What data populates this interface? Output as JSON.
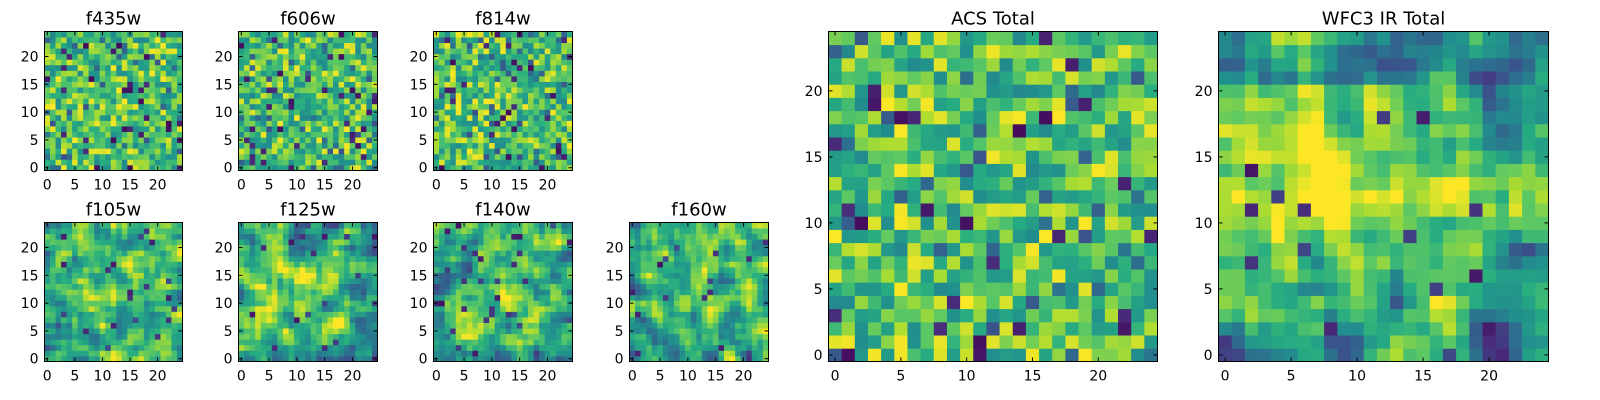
{
  "chart_data": [
    {
      "type": "heatmap",
      "title": "f435w",
      "xlim": [
        -0.5,
        24.5
      ],
      "ylim": [
        -0.5,
        24.5
      ],
      "x_ticks": [
        0,
        5,
        10,
        15,
        20
      ],
      "y_ticks": [
        0,
        5,
        10,
        15,
        20
      ],
      "colormap": "viridis",
      "value_range": [
        0,
        1
      ],
      "texture": "noise",
      "seed": 11
    },
    {
      "type": "heatmap",
      "title": "f606w",
      "xlim": [
        -0.5,
        24.5
      ],
      "ylim": [
        -0.5,
        24.5
      ],
      "x_ticks": [
        0,
        5,
        10,
        15,
        20
      ],
      "y_ticks": [
        0,
        5,
        10,
        15,
        20
      ],
      "colormap": "viridis",
      "value_range": [
        0,
        1
      ],
      "texture": "noise",
      "seed": 23
    },
    {
      "type": "heatmap",
      "title": "f814w",
      "xlim": [
        -0.5,
        24.5
      ],
      "ylim": [
        -0.5,
        24.5
      ],
      "x_ticks": [
        0,
        5,
        10,
        15,
        20
      ],
      "y_ticks": [
        0,
        5,
        10,
        15,
        20
      ],
      "colormap": "viridis",
      "value_range": [
        0,
        1
      ],
      "texture": "noise",
      "seed": 37
    },
    {
      "type": "heatmap",
      "title": "f105w",
      "xlim": [
        -0.5,
        24.5
      ],
      "ylim": [
        -0.5,
        24.5
      ],
      "x_ticks": [
        0,
        5,
        10,
        15,
        20
      ],
      "y_ticks": [
        0,
        5,
        10,
        15,
        20
      ],
      "colormap": "viridis",
      "value_range": [
        0,
        1
      ],
      "texture": "smooth",
      "seed": 41
    },
    {
      "type": "heatmap",
      "title": "f125w",
      "xlim": [
        -0.5,
        24.5
      ],
      "ylim": [
        -0.5,
        24.5
      ],
      "x_ticks": [
        0,
        5,
        10,
        15,
        20
      ],
      "y_ticks": [
        0,
        5,
        10,
        15,
        20
      ],
      "colormap": "viridis",
      "value_range": [
        0,
        1
      ],
      "texture": "smooth",
      "seed": 53
    },
    {
      "type": "heatmap",
      "title": "f140w",
      "xlim": [
        -0.5,
        24.5
      ],
      "ylim": [
        -0.5,
        24.5
      ],
      "x_ticks": [
        0,
        5,
        10,
        15,
        20
      ],
      "y_ticks": [
        0,
        5,
        10,
        15,
        20
      ],
      "colormap": "viridis",
      "value_range": [
        0,
        1
      ],
      "texture": "smooth",
      "seed": 67
    },
    {
      "type": "heatmap",
      "title": "f160w",
      "xlim": [
        -0.5,
        24.5
      ],
      "ylim": [
        -0.5,
        24.5
      ],
      "x_ticks": [
        0,
        5,
        10,
        15,
        20
      ],
      "y_ticks": [
        0,
        5,
        10,
        15,
        20
      ],
      "colormap": "viridis",
      "value_range": [
        0,
        1
      ],
      "texture": "smooth",
      "seed": 79
    },
    {
      "type": "heatmap",
      "title": "ACS Total",
      "xlim": [
        -0.5,
        24.5
      ],
      "ylim": [
        -0.5,
        24.5
      ],
      "x_ticks": [
        0,
        5,
        10,
        15,
        20
      ],
      "y_ticks": [
        0,
        5,
        10,
        15,
        20
      ],
      "colormap": "viridis",
      "value_range": [
        0,
        1
      ],
      "texture": "noise",
      "seed": 97
    },
    {
      "type": "heatmap",
      "title": "WFC3 IR Total",
      "xlim": [
        -0.5,
        24.5
      ],
      "ylim": [
        -0.5,
        24.5
      ],
      "x_ticks": [
        0,
        5,
        10,
        15,
        20
      ],
      "y_ticks": [
        0,
        5,
        10,
        15,
        20
      ],
      "colormap": "viridis",
      "value_range": [
        0,
        1
      ],
      "texture": "blob",
      "seed": 131
    }
  ]
}
